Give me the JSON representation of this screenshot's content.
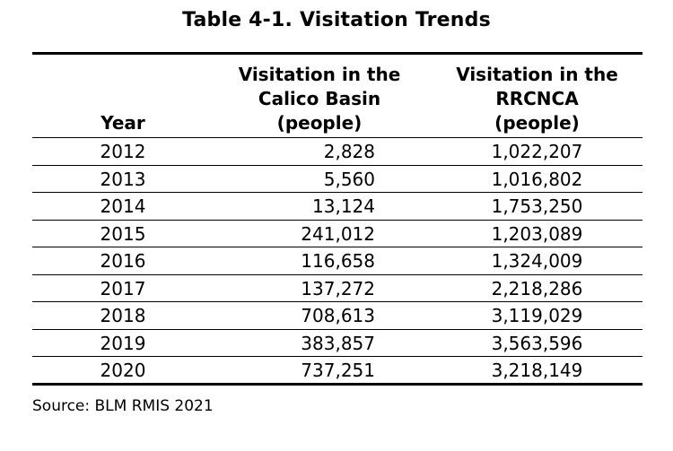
{
  "title": "Table 4-1. Visitation Trends",
  "table": {
    "headers": {
      "year": "Year",
      "calico_line1": "Visitation in the",
      "calico_line2": "Calico Basin",
      "calico_line3": "(people)",
      "rrc_line1": "Visitation in the",
      "rrc_line2": "RRCNCA",
      "rrc_line3": "(people)"
    },
    "rows": [
      {
        "year": "2012",
        "calico": "2,828",
        "rrcnca": "1,022,207"
      },
      {
        "year": "2013",
        "calico": "5,560",
        "rrcnca": "1,016,802"
      },
      {
        "year": "2014",
        "calico": "13,124",
        "rrcnca": "1,753,250"
      },
      {
        "year": "2015",
        "calico": "241,012",
        "rrcnca": "1,203,089"
      },
      {
        "year": "2016",
        "calico": "116,658",
        "rrcnca": "1,324,009"
      },
      {
        "year": "2017",
        "calico": "137,272",
        "rrcnca": "2,218,286"
      },
      {
        "year": "2018",
        "calico": "708,613",
        "rrcnca": "3,119,029"
      },
      {
        "year": "2019",
        "calico": "383,857",
        "rrcnca": "3,563,596"
      },
      {
        "year": "2020",
        "calico": "737,251",
        "rrcnca": "3,218,149"
      }
    ]
  },
  "source": "Source: BLM RMIS 2021"
}
